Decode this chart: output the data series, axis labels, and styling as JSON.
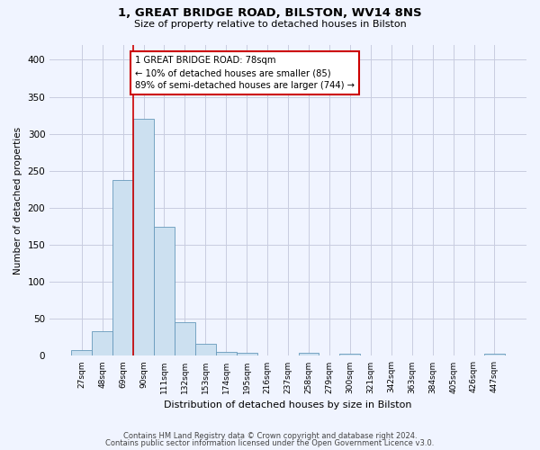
{
  "title_line1": "1, GREAT BRIDGE ROAD, BILSTON, WV14 8NS",
  "title_line2": "Size of property relative to detached houses in Bilston",
  "xlabel": "Distribution of detached houses by size in Bilston",
  "ylabel": "Number of detached properties",
  "bar_labels": [
    "27sqm",
    "48sqm",
    "69sqm",
    "90sqm",
    "111sqm",
    "132sqm",
    "153sqm",
    "174sqm",
    "195sqm",
    "216sqm",
    "237sqm",
    "258sqm",
    "279sqm",
    "300sqm",
    "321sqm",
    "342sqm",
    "363sqm",
    "384sqm",
    "405sqm",
    "426sqm",
    "447sqm"
  ],
  "bar_values": [
    8,
    33,
    238,
    320,
    175,
    45,
    16,
    5,
    4,
    0,
    0,
    4,
    0,
    3,
    0,
    0,
    0,
    0,
    0,
    0,
    3
  ],
  "bar_color": "#cce0f0",
  "bar_edge_color": "#6699bb",
  "ylim": [
    0,
    420
  ],
  "yticks": [
    0,
    50,
    100,
    150,
    200,
    250,
    300,
    350,
    400
  ],
  "vline_x": 2.5,
  "annotation_text": "1 GREAT BRIDGE ROAD: 78sqm\n← 10% of detached houses are smaller (85)\n89% of semi-detached houses are larger (744) →",
  "annotation_box_color": "#ffffff",
  "annotation_box_edge": "#cc0000",
  "vline_color": "#cc0000",
  "footer_line1": "Contains HM Land Registry data © Crown copyright and database right 2024.",
  "footer_line2": "Contains public sector information licensed under the Open Government Licence v3.0.",
  "bg_color": "#f0f4ff",
  "grid_color": "#c8cce0"
}
